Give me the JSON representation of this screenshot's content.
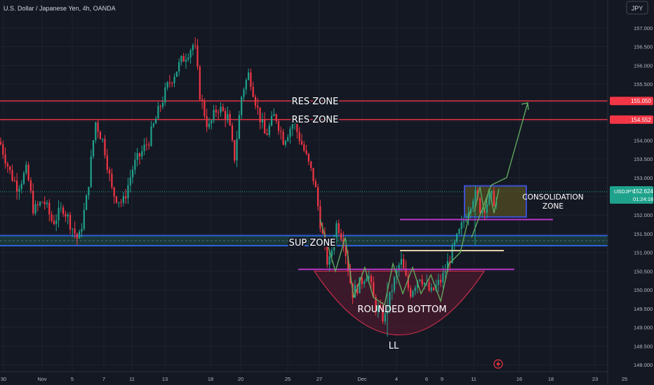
{
  "header": {
    "symbol_title": "U.S. Dollar / Japanese Yen, 4h, OANDA"
  },
  "currency_button": "JPY",
  "price_axis": {
    "ticks": [
      "157.000",
      "156.500",
      "156.000",
      "155.500",
      "155.000",
      "154.500",
      "154.000",
      "153.500",
      "153.000",
      "152.500",
      "152.000",
      "151.500",
      "151.000",
      "150.500",
      "150.000",
      "149.500",
      "149.000",
      "148.500",
      "148.000"
    ],
    "tick_values": [
      157.0,
      156.5,
      156.0,
      155.5,
      155.0,
      154.5,
      154.0,
      153.5,
      153.0,
      152.5,
      152.0,
      151.5,
      151.0,
      150.5,
      150.0,
      149.5,
      149.0,
      148.5,
      148.0
    ]
  },
  "time_axis": {
    "ticks": [
      "30",
      "Nov",
      "5",
      "7",
      "11",
      "13",
      "18",
      "20",
      "25",
      "27",
      "Dec",
      "4",
      "6",
      "9",
      "11",
      "16",
      "18",
      "23",
      "25"
    ]
  },
  "price_labels": {
    "res1": "155.050",
    "res2": "154.552",
    "current_symbol": "USDJPY",
    "current_price": "152.624",
    "countdown": "01:24:18"
  },
  "annotations": {
    "res_zone_1": "RES ZONE",
    "res_zone_2": "RES ZONE",
    "sup_zone": "SUP ZONE",
    "consolidation_1": "CONSOLIDATION",
    "consolidation_2": "ZONE",
    "rounded_bottom": "ROUNDED BOTTOM",
    "ll": "LL"
  },
  "colors": {
    "background": "#141823",
    "bull": "#1fa28c",
    "bear": "#f23645",
    "resistance": "#f23645",
    "support": "#2f5fd8",
    "consolidation": "#3d4fd0",
    "purple": "#b836c4",
    "arrow": "#5fa85f"
  },
  "chart_data": {
    "type": "candlestick",
    "title": "U.S. Dollar / Japanese Yen, 4h, OANDA",
    "ylim": [
      148.0,
      157.2
    ],
    "current_price": 152.624,
    "resistance_levels": [
      155.05,
      154.552
    ],
    "support_zone": [
      151.18,
      151.45
    ],
    "consolidation_zone": [
      151.95,
      152.78
    ],
    "path": [
      [
        0,
        153.95
      ],
      [
        15,
        153.1
      ],
      [
        25,
        152.75
      ],
      [
        38,
        153.2
      ],
      [
        48,
        152.1
      ],
      [
        62,
        152.4
      ],
      [
        75,
        151.8
      ],
      [
        90,
        152.2
      ],
      [
        112,
        151.3
      ],
      [
        124,
        152.5
      ],
      [
        136,
        154.5
      ],
      [
        148,
        153.9
      ],
      [
        160,
        152.6
      ],
      [
        175,
        152.3
      ],
      [
        190,
        153.3
      ],
      [
        212,
        154.0
      ],
      [
        228,
        154.9
      ],
      [
        240,
        155.5
      ],
      [
        258,
        156.1
      ],
      [
        277,
        156.6
      ],
      [
        285,
        155.2
      ],
      [
        297,
        154.3
      ],
      [
        310,
        154.9
      ],
      [
        325,
        154.6
      ],
      [
        334,
        153.5
      ],
      [
        345,
        155.3
      ],
      [
        355,
        155.8
      ],
      [
        366,
        154.9
      ],
      [
        378,
        154.1
      ],
      [
        392,
        154.7
      ],
      [
        404,
        154.0
      ],
      [
        418,
        154.5
      ],
      [
        432,
        153.8
      ],
      [
        448,
        152.9
      ],
      [
        458,
        151.6
      ],
      [
        468,
        150.6
      ],
      [
        480,
        151.8
      ],
      [
        490,
        151.3
      ],
      [
        502,
        149.9
      ],
      [
        514,
        150.2
      ],
      [
        524,
        150.5
      ],
      [
        534,
        149.6
      ],
      [
        548,
        149.2
      ],
      [
        558,
        150.0
      ],
      [
        571,
        150.8
      ],
      [
        584,
        149.9
      ],
      [
        598,
        150.4
      ],
      [
        614,
        149.9
      ],
      [
        630,
        150.3
      ],
      [
        650,
        151.3
      ],
      [
        664,
        152.0
      ],
      [
        676,
        152.6
      ],
      [
        686,
        152.1
      ],
      [
        700,
        152.5
      ],
      [
        708,
        152.3
      ]
    ],
    "drawings": {
      "rounded_bottom_points": [
        [
          456,
          151.9
        ],
        [
          478,
          150.5
        ],
        [
          492,
          151.4
        ],
        [
          504,
          149.8
        ],
        [
          520,
          150.6
        ],
        [
          532,
          149.8
        ],
        [
          548,
          149.6
        ],
        [
          560,
          150.7
        ],
        [
          574,
          149.9
        ],
        [
          588,
          150.6
        ],
        [
          600,
          149.9
        ],
        [
          614,
          150.4
        ],
        [
          628,
          149.7
        ],
        [
          640,
          150.7
        ],
        [
          656,
          151.0
        ],
        [
          670,
          152.1
        ]
      ],
      "projection_arrow": [
        [
          672,
          151.4
        ],
        [
          700,
          152.8
        ],
        [
          722,
          153.0
        ],
        [
          752,
          155.0
        ]
      ],
      "level_lines": [
        150.55,
        151.05,
        151.88
      ]
    }
  }
}
